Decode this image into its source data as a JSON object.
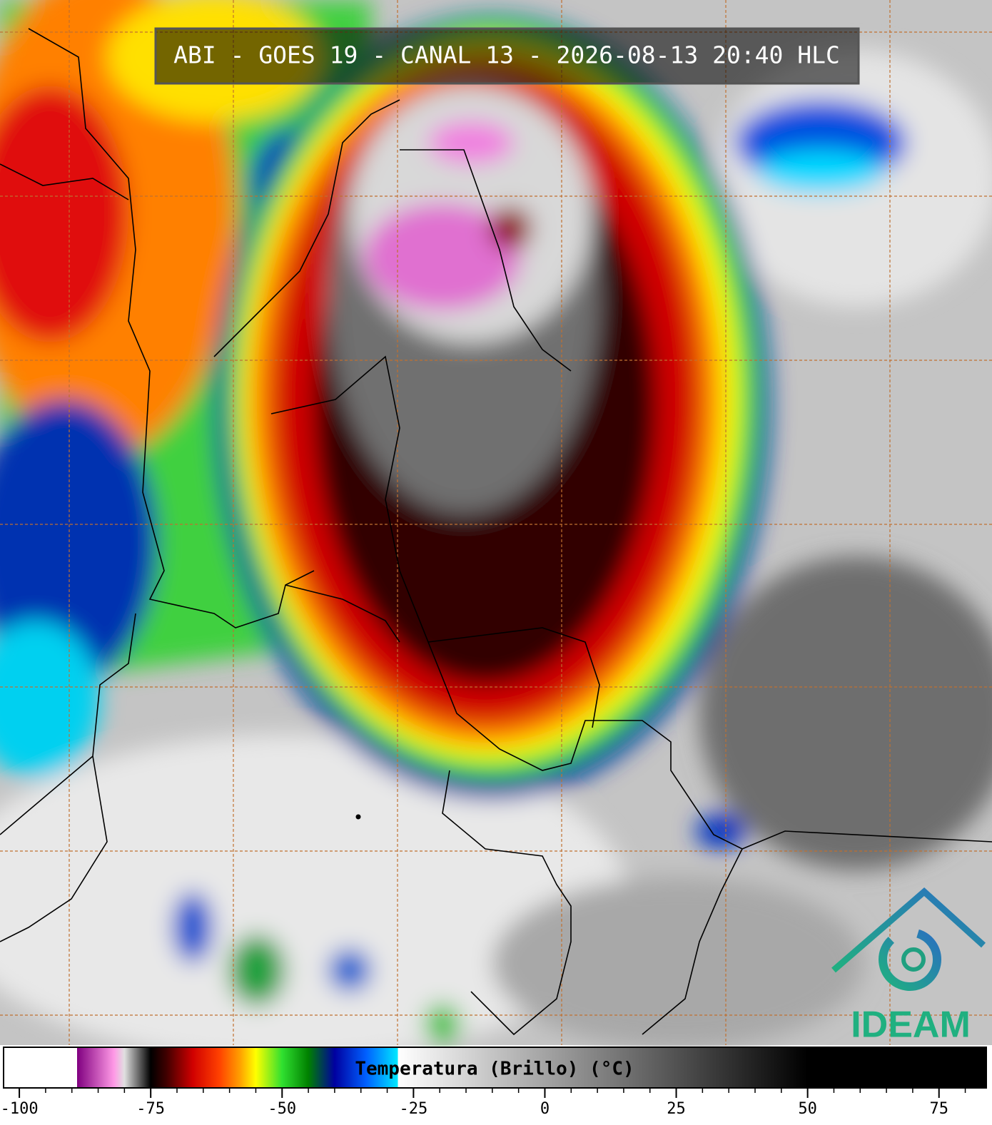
{
  "header": {
    "title": "ABI - GOES 19 - CANAL 13 - 2026-08-13 20:40 HLC"
  },
  "colorbar": {
    "label": "Temperatura (Brillo) (°C)",
    "lim": [
      -103,
      84
    ],
    "ticks": [
      -100,
      -75,
      -50,
      -25,
      0,
      25,
      50,
      75
    ],
    "stops": [
      {
        "value": -103,
        "color": "#ffffff"
      },
      {
        "value": -89,
        "color": "#ffffff"
      },
      {
        "value": -89,
        "color": "#800080"
      },
      {
        "value": -82,
        "color": "#ff99e6"
      },
      {
        "value": -80,
        "color": "#e0e0e0"
      },
      {
        "value": -75,
        "color": "#000000"
      },
      {
        "value": -72,
        "color": "#400000"
      },
      {
        "value": -67,
        "color": "#d00000"
      },
      {
        "value": -62,
        "color": "#ff4000"
      },
      {
        "value": -58,
        "color": "#ffa000"
      },
      {
        "value": -55,
        "color": "#ffff00"
      },
      {
        "value": -50,
        "color": "#30e030"
      },
      {
        "value": -45,
        "color": "#008000"
      },
      {
        "value": -40,
        "color": "#0000a0"
      },
      {
        "value": -34,
        "color": "#0060ff"
      },
      {
        "value": -28,
        "color": "#00e8ff"
      },
      {
        "value": -28,
        "color": "#ffffff"
      },
      {
        "value": 50,
        "color": "#000000"
      },
      {
        "value": 84,
        "color": "#000000"
      }
    ]
  },
  "logo": {
    "text": "IDEAM"
  }
}
